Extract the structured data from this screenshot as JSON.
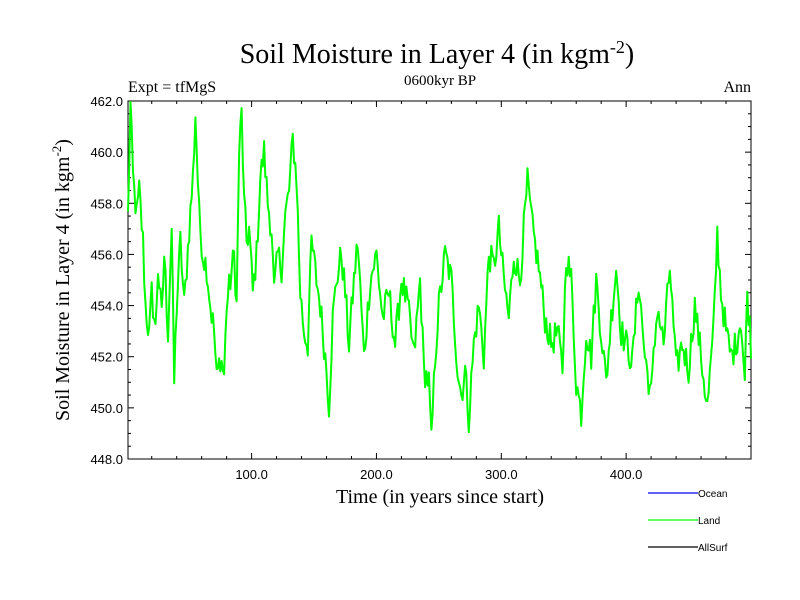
{
  "chart_data": {
    "type": "line",
    "title": "Soil Moisture in Layer 4 (in kgm",
    "title_sup": "-2",
    "title_close": ")",
    "subtitle_left": "Expt = tfMgS",
    "subtitle_center": "0600kyr BP",
    "subtitle_right": "Ann",
    "xlabel": "Time (in years since start)",
    "ylabel": "Soil Moisture in Layer 4 (in kgm",
    "ylabel_sup": "-2",
    "ylabel_close": ")",
    "xlim": [
      1,
      500
    ],
    "ylim": [
      448.0,
      462.0
    ],
    "x_ticks": [
      100,
      200,
      300,
      400
    ],
    "x_tick_labels": [
      "100.0",
      "200.0",
      "300.0",
      "400.0"
    ],
    "y_ticks": [
      448,
      450,
      452,
      454,
      456,
      458,
      460,
      462
    ],
    "y_tick_labels": [
      "448.0",
      "450.0",
      "452.0",
      "454.0",
      "456.0",
      "458.0",
      "460.0",
      "462.0"
    ],
    "legend": [
      {
        "name": "Ocean",
        "color": "#0000ff"
      },
      {
        "name": "Land",
        "color": "#00ff00"
      },
      {
        "name": "AllSurf",
        "color": "#000000"
      }
    ],
    "legend_placement": "bottom-right",
    "series": [
      {
        "name": "Land",
        "color": "#00ff00",
        "anchors": [
          [
            1,
            457.5
          ],
          [
            3,
            461.8
          ],
          [
            5,
            459.0
          ],
          [
            8,
            457.5
          ],
          [
            10,
            458.5
          ],
          [
            13,
            456.5
          ],
          [
            15,
            454.0
          ],
          [
            18,
            452.8
          ],
          [
            20,
            454.5
          ],
          [
            23,
            453.0
          ],
          [
            25,
            455.5
          ],
          [
            28,
            453.5
          ],
          [
            30,
            456.0
          ],
          [
            33,
            453.0
          ],
          [
            36,
            457.0
          ],
          [
            38,
            451.0
          ],
          [
            40,
            454.0
          ],
          [
            43,
            456.5
          ],
          [
            46,
            454.0
          ],
          [
            50,
            457.0
          ],
          [
            53,
            459.0
          ],
          [
            55,
            461.5
          ],
          [
            58,
            457.5
          ],
          [
            61,
            456.0
          ],
          [
            64,
            455.5
          ],
          [
            67,
            454.0
          ],
          [
            70,
            453.0
          ],
          [
            72,
            451.1
          ],
          [
            75,
            452.0
          ],
          [
            78,
            451.3
          ],
          [
            80,
            454.0
          ],
          [
            83,
            455.0
          ],
          [
            86,
            456.0
          ],
          [
            88,
            454.0
          ],
          [
            90,
            460.0
          ],
          [
            92,
            461.5
          ],
          [
            94,
            458.0
          ],
          [
            96,
            456.5
          ],
          [
            98,
            457.0
          ],
          [
            101,
            454.5
          ],
          [
            104,
            456.0
          ],
          [
            107,
            459.0
          ],
          [
            110,
            460.0
          ],
          [
            113,
            458.0
          ],
          [
            116,
            457.0
          ],
          [
            118,
            454.5
          ],
          [
            121,
            456.0
          ],
          [
            124,
            455.5
          ],
          [
            127,
            457.5
          ],
          [
            130,
            458.5
          ],
          [
            133,
            460.5
          ],
          [
            136,
            459.0
          ],
          [
            139,
            454.5
          ],
          [
            142,
            453.0
          ],
          [
            145,
            452.5
          ],
          [
            148,
            456.5
          ],
          [
            152,
            455.0
          ],
          [
            155,
            454.0
          ],
          [
            158,
            452.5
          ],
          [
            160,
            451.5
          ],
          [
            162,
            450.1
          ],
          [
            165,
            453.5
          ],
          [
            168,
            455.0
          ],
          [
            172,
            456.0
          ],
          [
            175,
            454.5
          ],
          [
            178,
            452.5
          ],
          [
            182,
            455.0
          ],
          [
            185,
            456.5
          ],
          [
            190,
            452.0
          ],
          [
            195,
            455.0
          ],
          [
            200,
            456.0
          ],
          [
            205,
            453.5
          ],
          [
            210,
            454.5
          ],
          [
            215,
            452.5
          ],
          [
            220,
            455.0
          ],
          [
            225,
            454.0
          ],
          [
            230,
            452.0
          ],
          [
            235,
            455.0
          ],
          [
            238,
            451.5
          ],
          [
            242,
            451.0
          ],
          [
            244,
            448.6
          ],
          [
            247,
            452.0
          ],
          [
            250,
            454.0
          ],
          [
            255,
            456.0
          ],
          [
            260,
            455.0
          ],
          [
            265,
            451.5
          ],
          [
            268,
            450.5
          ],
          [
            271,
            451.5
          ],
          [
            274,
            449.6
          ],
          [
            278,
            452.5
          ],
          [
            282,
            454.0
          ],
          [
            286,
            452.0
          ],
          [
            290,
            456.0
          ],
          [
            294,
            455.5
          ],
          [
            298,
            457.0
          ],
          [
            302,
            455.0
          ],
          [
            306,
            453.5
          ],
          [
            310,
            456.0
          ],
          [
            315,
            455.0
          ],
          [
            318,
            457.0
          ],
          [
            321,
            458.8
          ],
          [
            325,
            457.0
          ],
          [
            330,
            455.5
          ],
          [
            335,
            453.5
          ],
          [
            340,
            452.5
          ],
          [
            345,
            453.0
          ],
          [
            349,
            451.5
          ],
          [
            352,
            456.0
          ],
          [
            356,
            455.0
          ],
          [
            360,
            451.0
          ],
          [
            364,
            449.8
          ],
          [
            368,
            453.0
          ],
          [
            372,
            452.0
          ],
          [
            376,
            455.0
          ],
          [
            380,
            453.0
          ],
          [
            384,
            451.0
          ],
          [
            388,
            453.5
          ],
          [
            392,
            455.5
          ],
          [
            396,
            453.0
          ],
          [
            400,
            452.5
          ],
          [
            405,
            451.8
          ],
          [
            410,
            455.0
          ],
          [
            415,
            452.0
          ],
          [
            420,
            450.5
          ],
          [
            425,
            454.0
          ],
          [
            430,
            452.5
          ],
          [
            435,
            455.5
          ],
          [
            440,
            451.5
          ],
          [
            445,
            452.5
          ],
          [
            450,
            451.5
          ],
          [
            455,
            454.0
          ],
          [
            460,
            452.0
          ],
          [
            465,
            450.0
          ],
          [
            470,
            453.0
          ],
          [
            473,
            456.8
          ],
          [
            476,
            454.5
          ],
          [
            480,
            453.0
          ],
          [
            484,
            452.0
          ],
          [
            488,
            452.5
          ],
          [
            492,
            453.5
          ],
          [
            495,
            451.0
          ],
          [
            497,
            454.5
          ],
          [
            500,
            452.5
          ]
        ]
      }
    ]
  }
}
